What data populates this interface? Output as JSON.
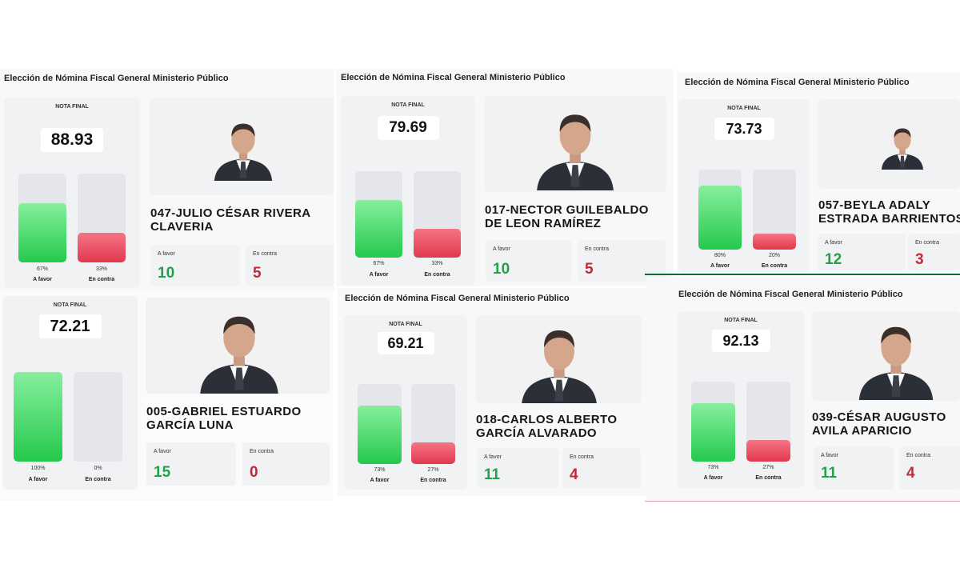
{
  "header": "Elección de Nómina Fiscal General Ministerio Público",
  "labels": {
    "score_heading": "NOTA FINAL",
    "for_short": "A favor",
    "against_short": "En contra"
  },
  "colors": {
    "green": "#23a04a",
    "red": "#c5283a",
    "divider": "#0f6b3a"
  },
  "candidates": [
    {
      "name_line1": "047-JULIO CÉSAR RIVERA",
      "name_line2": "CLAVERIA",
      "score": "88.93",
      "favor_pct": "67%",
      "contra_pct": "33%",
      "favor_share": 0.67,
      "contra_share": 0.33,
      "favor_votes": "10",
      "contra_votes": "5",
      "photo_icon": "candidate-portrait"
    },
    {
      "name_line1": "017-NECTOR GUILEBALDO",
      "name_line2": "DE LEON RAMÍREZ",
      "score": "79.69",
      "favor_pct": "67%",
      "contra_pct": "33%",
      "favor_share": 0.67,
      "contra_share": 0.33,
      "favor_votes": "10",
      "contra_votes": "5",
      "photo_icon": "candidate-portrait"
    },
    {
      "name_line1": "057-BEYLA ADALY",
      "name_line2": "ESTRADA BARRIENTOS",
      "score": "73.73",
      "favor_pct": "80%",
      "contra_pct": "20%",
      "favor_share": 0.8,
      "contra_share": 0.2,
      "favor_votes": "12",
      "contra_votes": "3",
      "photo_icon": "candidate-portrait"
    },
    {
      "name_line1": "005-GABRIEL ESTUARDO",
      "name_line2": "GARCÍA LUNA",
      "score": "72.21",
      "favor_pct": "100%",
      "contra_pct": "0%",
      "favor_share": 1.0,
      "contra_share": 0.0,
      "favor_votes": "15",
      "contra_votes": "0",
      "photo_icon": "candidate-portrait"
    },
    {
      "name_line1": "018-CARLOS ALBERTO",
      "name_line2": "GARCÍA ALVARADO",
      "score": "69.21",
      "favor_pct": "73%",
      "contra_pct": "27%",
      "favor_share": 0.73,
      "contra_share": 0.27,
      "favor_votes": "11",
      "contra_votes": "4",
      "photo_icon": "candidate-portrait"
    },
    {
      "name_line1": "039-CÉSAR AUGUSTO",
      "name_line2": "AVILA APARICIO",
      "score": "92.13",
      "favor_pct": "73%",
      "contra_pct": "27%",
      "favor_share": 0.73,
      "contra_share": 0.27,
      "favor_votes": "11",
      "contra_votes": "4",
      "photo_icon": "candidate-portrait"
    }
  ]
}
